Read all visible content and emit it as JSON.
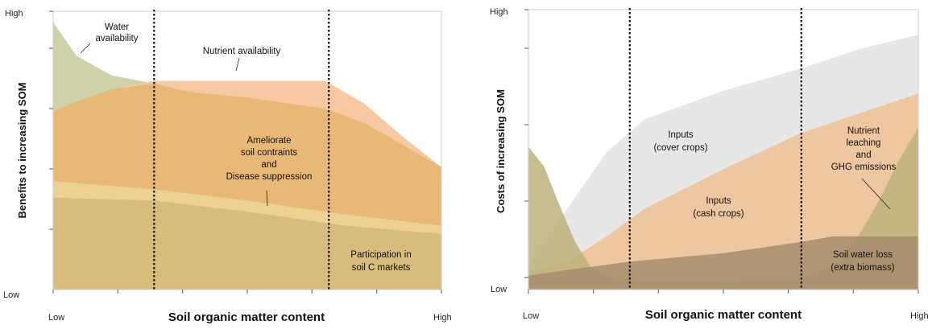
{
  "chart_data": [
    {
      "type": "area",
      "panel": "benefits",
      "xlabel": "Soil organic matter content",
      "ylabel": "Benefits to increasing SOM",
      "x_tick_labels": [
        "Low",
        "High"
      ],
      "y_tick_labels": [
        "Low",
        "High"
      ],
      "xlim": [
        0,
        1
      ],
      "ylim": [
        0,
        1
      ],
      "grid": false,
      "threshold_lines_x": [
        0.26,
        0.71
      ],
      "series": [
        {
          "name": "Water availability",
          "color": "#cfd1a8",
          "x": [
            0,
            0.06,
            0.15,
            0.26,
            0.35,
            0.5,
            0.6,
            0.7,
            0.8,
            0.9,
            1.0
          ],
          "y": [
            0.96,
            0.84,
            0.77,
            0.74,
            0.7,
            0.67,
            0.65,
            0.63,
            0.59,
            0.52,
            0.44
          ]
        },
        {
          "name": "Nutrient availability",
          "color": "#f7c9a2",
          "x": [
            0,
            0.05,
            0.15,
            0.26,
            0.35,
            0.5,
            0.6,
            0.7,
            0.8,
            0.9,
            1.0
          ],
          "y": [
            0.64,
            0.67,
            0.72,
            0.75,
            0.75,
            0.75,
            0.75,
            0.75,
            0.67,
            0.55,
            0.44
          ]
        },
        {
          "name": "Ameliorate soil contraints and Disease suppression",
          "color": "#e8b877",
          "x": [
            0,
            0.05,
            0.15,
            0.26,
            0.35,
            0.5,
            0.6,
            0.7,
            0.8,
            0.9,
            1.0
          ],
          "y": [
            0.64,
            0.67,
            0.72,
            0.74,
            0.71,
            0.69,
            0.67,
            0.65,
            0.6,
            0.52,
            0.44
          ]
        },
        {
          "name": "",
          "color": "#ecd192",
          "x": [
            0,
            0.26,
            0.5,
            0.75,
            1.0
          ],
          "y": [
            0.39,
            0.36,
            0.32,
            0.27,
            0.23
          ]
        },
        {
          "name": "Participation in soil C markets",
          "color": "#d7bc7c",
          "x": [
            0,
            0.26,
            0.5,
            0.75,
            1.0
          ],
          "y": [
            0.33,
            0.32,
            0.28,
            0.23,
            0.2
          ]
        }
      ],
      "annotations": [
        {
          "text": "Water",
          "line": 1
        },
        {
          "text": "availability",
          "line": 2
        },
        {
          "text": "Nutrient availability"
        },
        {
          "text": "Ameliorate"
        },
        {
          "text": "soil contraints"
        },
        {
          "text": "and"
        },
        {
          "text": "Disease suppression"
        },
        {
          "text": "Participation in"
        },
        {
          "text": "soil C markets"
        }
      ]
    },
    {
      "type": "area",
      "panel": "costs",
      "xlabel": "Soil organic matter content",
      "ylabel": "Costs of increasing SOM",
      "x_tick_labels": [
        "Low",
        "High"
      ],
      "y_tick_labels": [
        "Low",
        "High"
      ],
      "xlim": [
        0,
        1
      ],
      "ylim": [
        0,
        1
      ],
      "grid": false,
      "threshold_lines_x": [
        0.26,
        0.7
      ],
      "series": [
        {
          "name": "Inputs (cover crops)",
          "color": "#e3e3e3",
          "x": [
            0,
            0.1,
            0.2,
            0.3,
            0.5,
            0.7,
            0.85,
            1.0
          ],
          "y": [
            0.09,
            0.29,
            0.49,
            0.61,
            0.71,
            0.79,
            0.86,
            0.91
          ]
        },
        {
          "name": "Inputs (cash crops)",
          "color": "#efbf92",
          "x": [
            0,
            0.1,
            0.2,
            0.3,
            0.5,
            0.7,
            0.85,
            1.0
          ],
          "y": [
            0.06,
            0.1,
            0.19,
            0.29,
            0.43,
            0.56,
            0.63,
            0.7
          ]
        },
        {
          "name": "Nutrient leaching and GHG emissions",
          "color": "#bdb27a",
          "x": [
            0,
            0.04,
            0.08,
            0.12,
            0.16,
            0.22,
            0.3,
            0.5,
            0.7,
            0.8,
            0.85,
            0.9,
            0.95,
            1.0
          ],
          "y": [
            0.51,
            0.44,
            0.3,
            0.17,
            0.08,
            0.04,
            0.03,
            0.03,
            0.04,
            0.1,
            0.2,
            0.32,
            0.46,
            0.58
          ]
        },
        {
          "name": "Soil water loss (extra biomass)",
          "color": "#a68d6e",
          "x": [
            0,
            0.1,
            0.26,
            0.5,
            0.7,
            0.78,
            1.0
          ],
          "y": [
            0.05,
            0.07,
            0.1,
            0.13,
            0.17,
            0.19,
            0.19
          ]
        }
      ],
      "annotations": [
        {
          "text": "Inputs"
        },
        {
          "text": "(cover crops)"
        },
        {
          "text": "Inputs"
        },
        {
          "text": "(cash crops)"
        },
        {
          "text": "Nutrient"
        },
        {
          "text": "leaching"
        },
        {
          "text": "and"
        },
        {
          "text": "GHG emissions"
        },
        {
          "text": "Soil water loss"
        },
        {
          "text": "(extra biomass)"
        }
      ]
    }
  ]
}
